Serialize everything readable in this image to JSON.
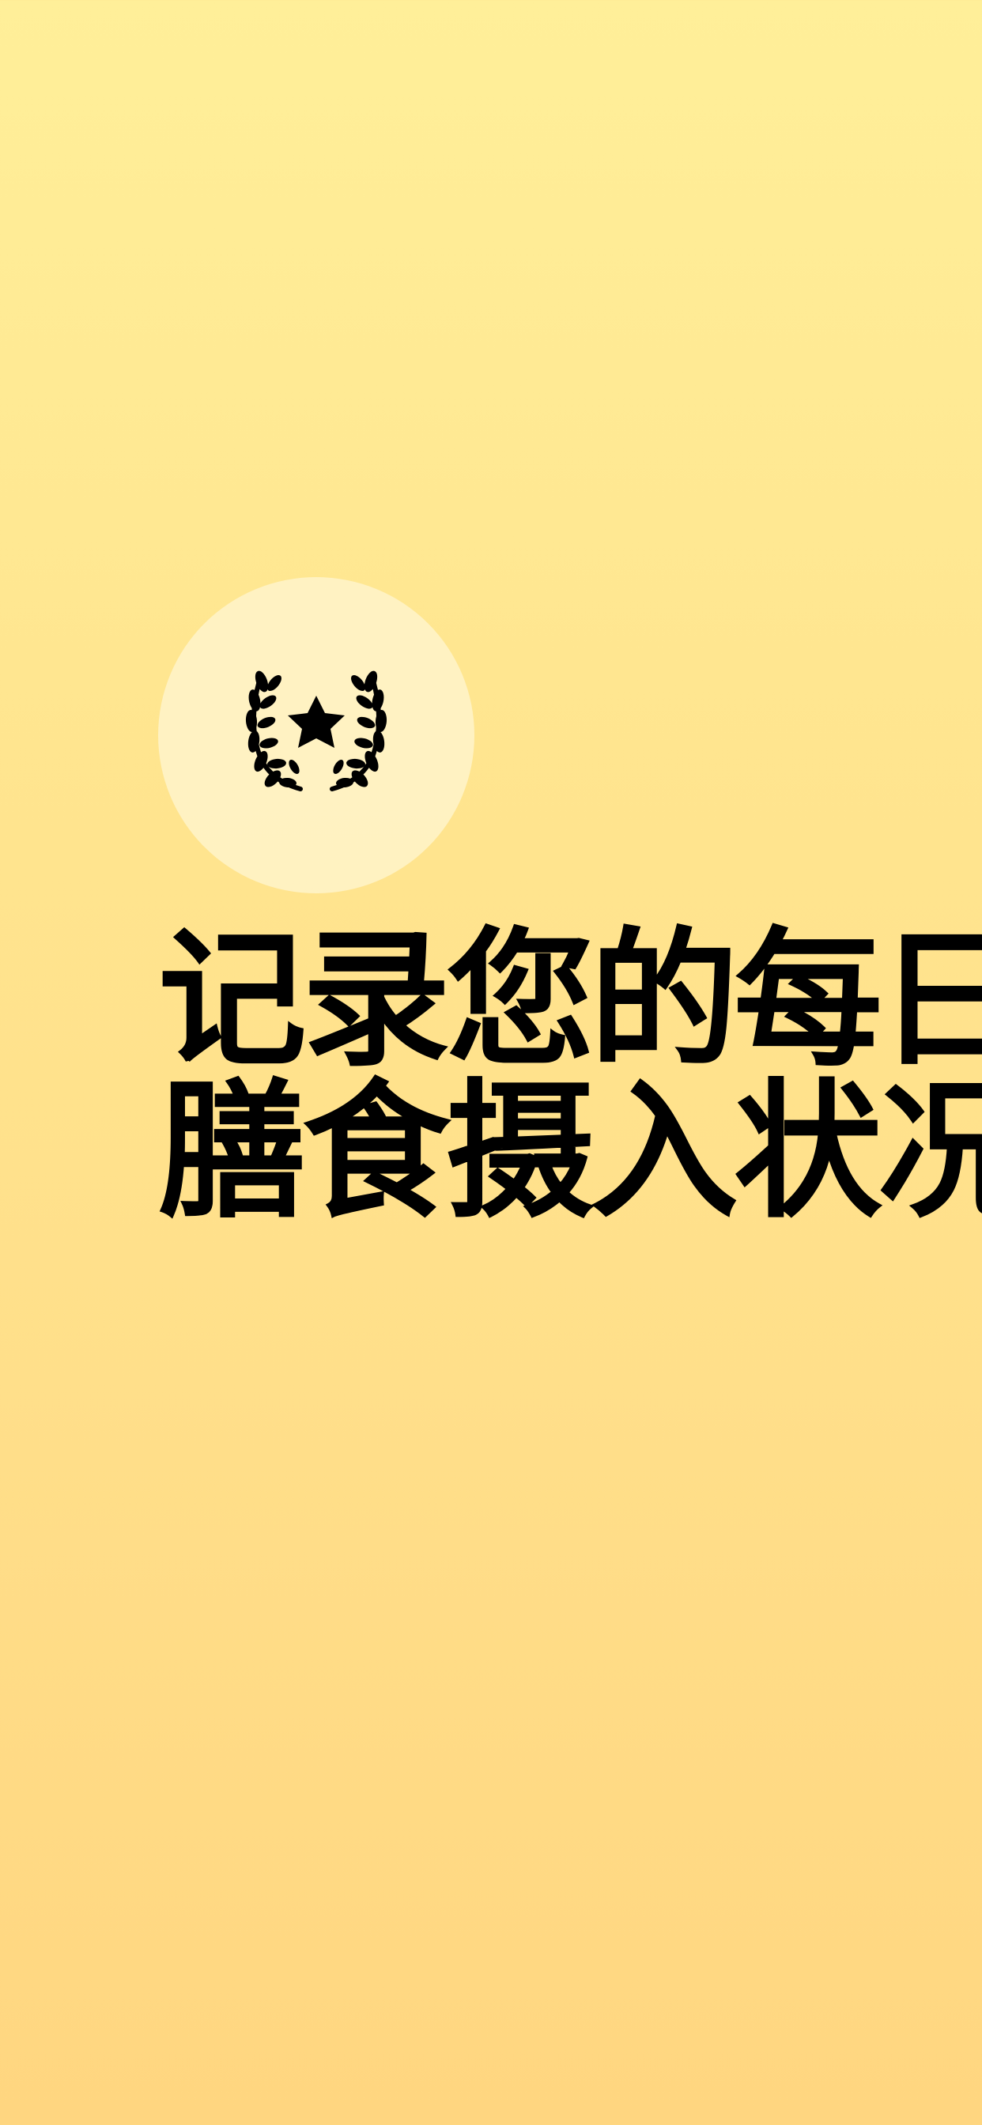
{
  "screen": {
    "badge": {
      "icon": "laurel-star-icon"
    },
    "headline": {
      "line1": "记录您的每日",
      "line2": "膳食摄入状况"
    }
  },
  "colors": {
    "background_top": "#FFEF99",
    "background_bottom": "#FFD680",
    "badge_circle": "#FFF3C8",
    "text": "#000000"
  }
}
